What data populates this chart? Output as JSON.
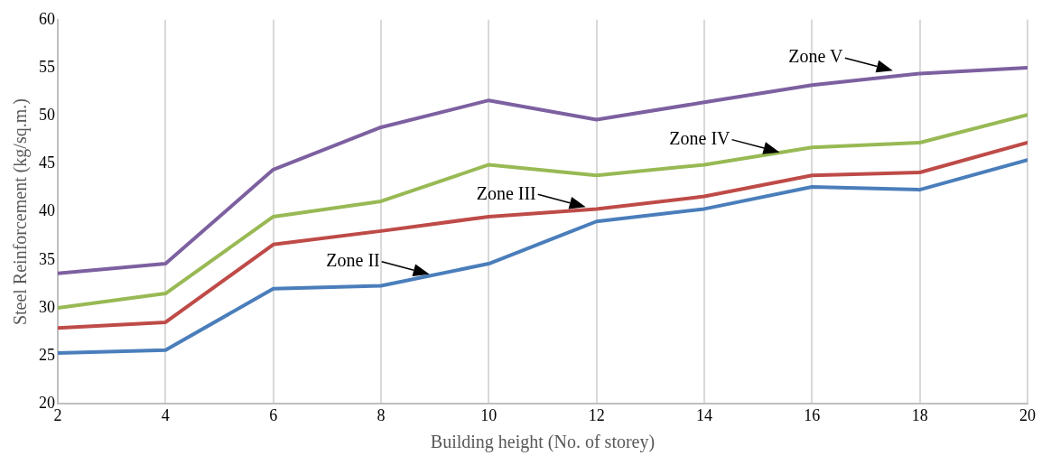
{
  "chart_data": {
    "type": "line",
    "xlabel": "Building height (No. of storey)",
    "ylabel": "Steel Reinforcement (kg/sq.m.)",
    "x": [
      2,
      4,
      6,
      8,
      10,
      12,
      14,
      16,
      18,
      20
    ],
    "series": [
      {
        "color": "#4a7ebb",
        "values": [
          25.3,
          25.6,
          32.0,
          32.3,
          34.6,
          39.0,
          40.3,
          42.6,
          42.3,
          45.4
        ]
      },
      {
        "color": "#be4b48",
        "values": [
          27.9,
          28.5,
          36.6,
          38.0,
          39.5,
          40.3,
          41.6,
          43.8,
          44.1,
          47.2
        ]
      },
      {
        "color": "#98b954",
        "values": [
          30.0,
          31.5,
          39.5,
          41.1,
          44.9,
          43.8,
          44.9,
          46.7,
          47.2,
          50.1
        ]
      },
      {
        "color": "#7d60a0",
        "values": [
          33.6,
          34.6,
          44.4,
          48.8,
          51.6,
          49.6,
          51.4,
          53.2,
          54.4,
          55.0
        ]
      }
    ],
    "xlim": [
      2,
      20
    ],
    "xticks": [
      2,
      4,
      6,
      8,
      10,
      12,
      14,
      16,
      18,
      20
    ],
    "ylim": [
      20,
      60
    ],
    "yticks": [
      20,
      25,
      30,
      35,
      40,
      45,
      50,
      55,
      60
    ],
    "grid": "x",
    "legend": false,
    "marker": "none",
    "line_style": "solid",
    "annotations": [
      {
        "text": "Zone II",
        "x": 8.9,
        "y": 33.5
      },
      {
        "text": "Zone III",
        "x": 11.8,
        "y": 40.5
      },
      {
        "text": "Zone IV",
        "x": 15.4,
        "y": 46.2
      },
      {
        "text": "Zone V",
        "x": 17.5,
        "y": 54.7
      }
    ]
  }
}
